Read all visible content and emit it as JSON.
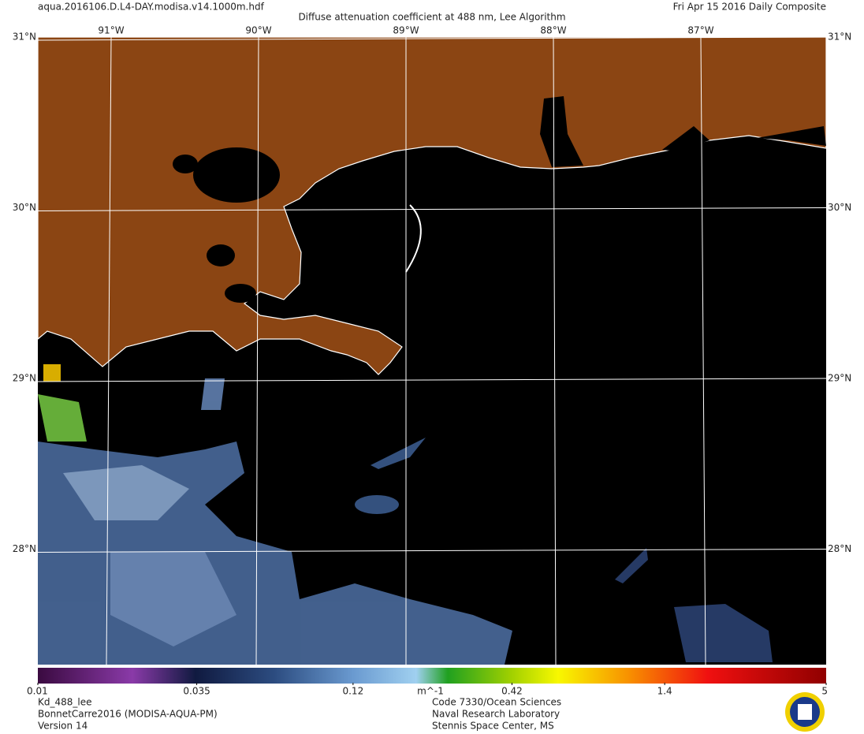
{
  "header": {
    "file": "aqua.2016106.D.L4-DAY.modisa.v14.1000m.hdf",
    "title": "Diffuse attenuation coefficient at 488 nm, Lee Algorithm",
    "date": "Fri Apr 15 2016 Daily Composite"
  },
  "map": {
    "lon_labels": [
      "91°W",
      "90°W",
      "89°W",
      "88°W",
      "87°W"
    ],
    "lat_labels": [
      "31°N",
      "30°N",
      "29°N",
      "28°N"
    ]
  },
  "colorbar": {
    "ticks": [
      0.01,
      0.035,
      0.12,
      0.42,
      1.4,
      5
    ],
    "unit": "m^-1",
    "log": true
  },
  "footer": {
    "left": [
      "Kd_488_lee",
      "BonnetCarre2016 (MODISA-AQUA-PM)",
      "Version 14"
    ],
    "right": [
      "Code 7330/Ocean Sciences",
      "Naval Research Laboratory",
      "Stennis Space Center, MS"
    ]
  }
}
